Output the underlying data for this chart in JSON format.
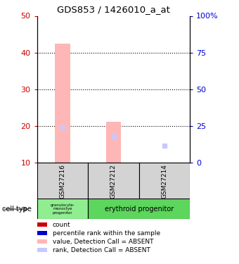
{
  "title": "GDS853 / 1426010_a_at",
  "samples": [
    "GSM27216",
    "GSM27212",
    "GSM27214"
  ],
  "ylim_left": [
    10,
    50
  ],
  "ylim_right": [
    0,
    100
  ],
  "yticks_left": [
    10,
    20,
    30,
    40,
    50
  ],
  "yticks_right": [
    0,
    25,
    50,
    75,
    100
  ],
  "ytick_labels_right": [
    "0",
    "25",
    "50",
    "75",
    "100%"
  ],
  "bar_absent_color": "#ffb6b6",
  "bar_absent_values": [
    42.5,
    21.0,
    null
  ],
  "rank_absent_left_values": [
    19.5,
    17.0,
    null
  ],
  "rank_absent_right_values": [
    null,
    null,
    14.5
  ],
  "bar_width": 0.3,
  "left_tick_color": "#cc0000",
  "right_tick_color": "#0000cc",
  "sample_area_color": "#d3d3d3",
  "granulocyte_color": "#90ee90",
  "erythroid_color": "#5cd65c",
  "legend_colors": [
    "#cc0000",
    "#0000cc",
    "#ffb6b6",
    "#c8c8ff"
  ],
  "legend_labels": [
    "count",
    "percentile rank within the sample",
    "value, Detection Call = ABSENT",
    "rank, Detection Call = ABSENT"
  ]
}
